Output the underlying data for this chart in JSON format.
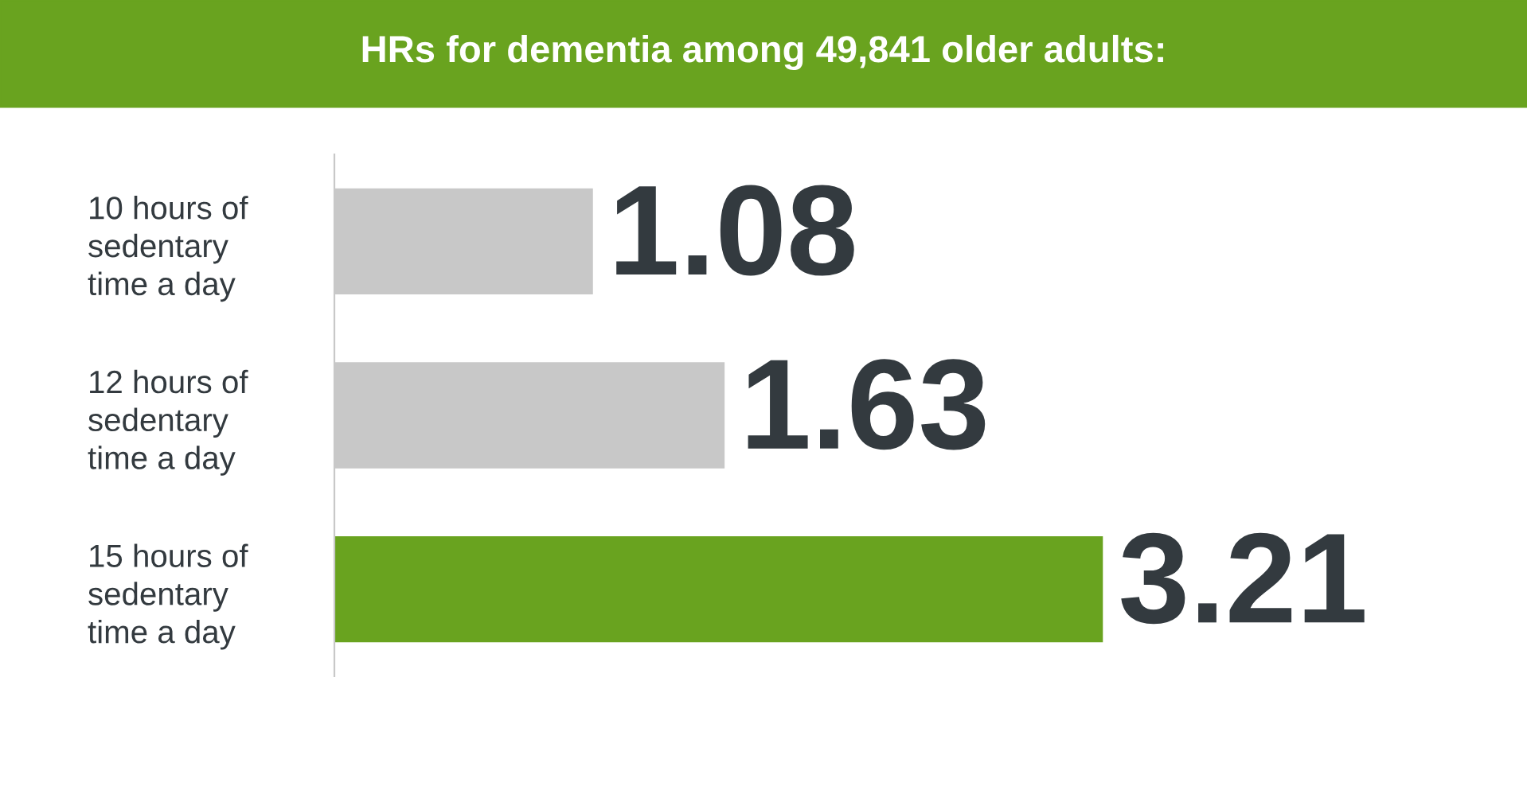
{
  "chart_data": {
    "type": "bar",
    "orientation": "horizontal",
    "title": "HRs for dementia among 49,841 older adults:",
    "categories": [
      "10 hours of\nsedentary\ntime a day",
      "12 hours of\nsedentary\ntime a day",
      "15 hours of\nsedentary\ntime a day"
    ],
    "values": [
      1.08,
      1.63,
      3.21
    ],
    "colors": [
      "#c8c8c8",
      "#c8c8c8",
      "#69a31f"
    ],
    "data_labels": true,
    "tick_labels": "y",
    "grid": false,
    "legend": false
  }
}
